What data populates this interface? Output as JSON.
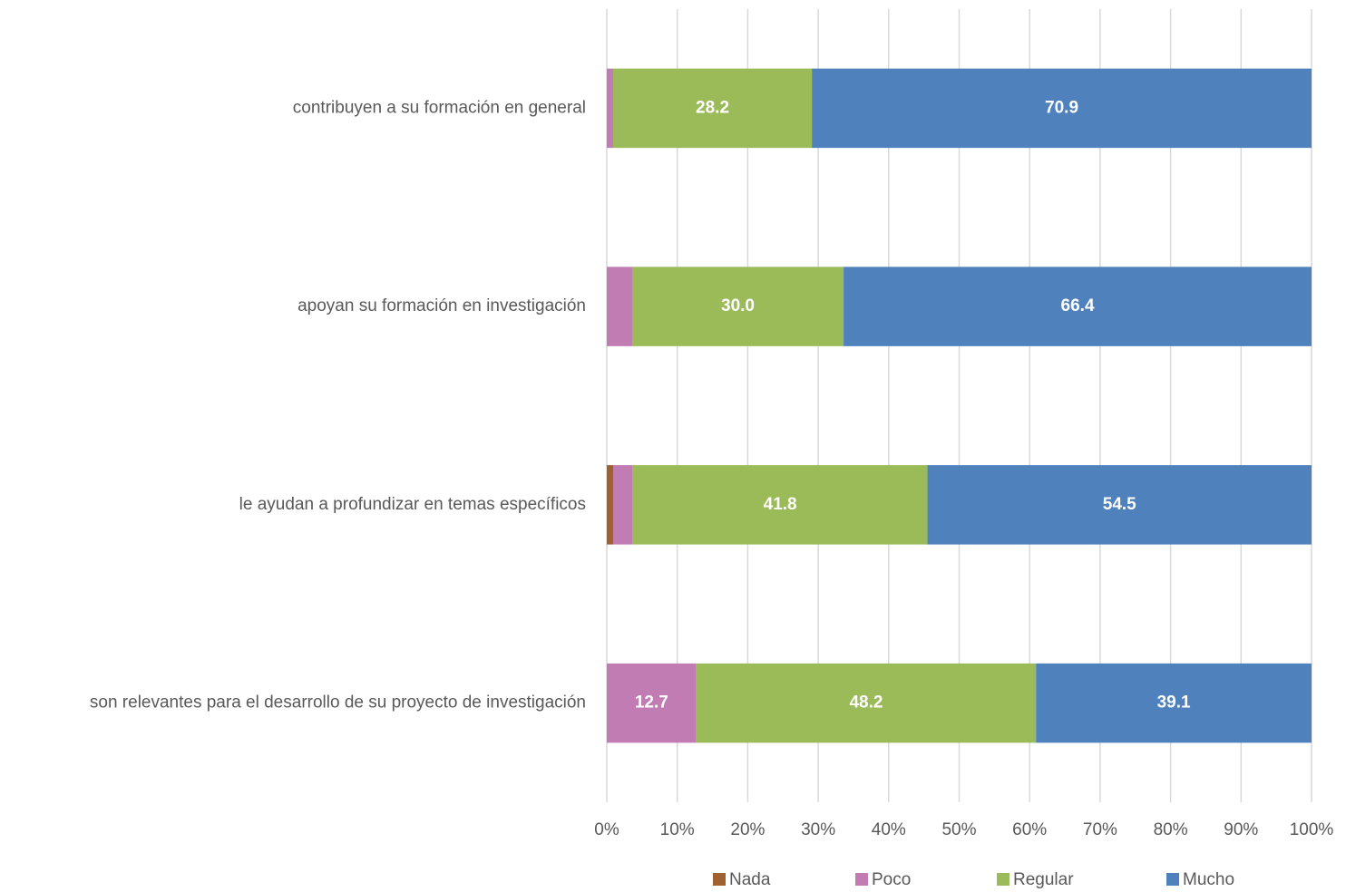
{
  "chart_data": {
    "type": "stacked_bar_horizontal",
    "categories": [
      "contribuyen a su formación en general",
      "apoyan su formación en investigación",
      "le ayudan a profundizar en temas específicos",
      "son relevantes para el desarrollo de su proyecto de investigación"
    ],
    "series": [
      {
        "name": "Nada",
        "color": "#9e612f",
        "values": [
          0,
          0,
          0.9,
          0
        ],
        "value_labels": [
          null,
          null,
          null,
          null
        ]
      },
      {
        "name": "Poco",
        "color": "#c27cb4",
        "values": [
          0.9,
          3.6,
          2.8,
          12.7
        ],
        "value_labels": [
          null,
          null,
          null,
          "12.7"
        ]
      },
      {
        "name": "Regular",
        "color": "#9bbb59",
        "values": [
          28.2,
          30.0,
          41.8,
          48.2
        ],
        "value_labels": [
          "28.2",
          "30.0",
          "41.8",
          "48.2"
        ]
      },
      {
        "name": "Mucho",
        "color": "#4f81bd",
        "values": [
          70.9,
          66.4,
          54.5,
          39.1
        ],
        "value_labels": [
          "70.9",
          "66.4",
          "54.5",
          "39.1"
        ]
      }
    ],
    "xlim": [
      0,
      100
    ],
    "xticks": [
      {
        "value": 0,
        "label": "0%"
      },
      {
        "value": 10,
        "label": "10%"
      },
      {
        "value": 20,
        "label": "20%"
      },
      {
        "value": 30,
        "label": "30%"
      },
      {
        "value": 40,
        "label": "40%"
      },
      {
        "value": 50,
        "label": "50%"
      },
      {
        "value": 60,
        "label": "60%"
      },
      {
        "value": 70,
        "label": "70%"
      },
      {
        "value": 80,
        "label": "80%"
      },
      {
        "value": 90,
        "label": "90%"
      },
      {
        "value": 100,
        "label": "100%"
      }
    ],
    "grid": true,
    "legend": "bottom"
  }
}
